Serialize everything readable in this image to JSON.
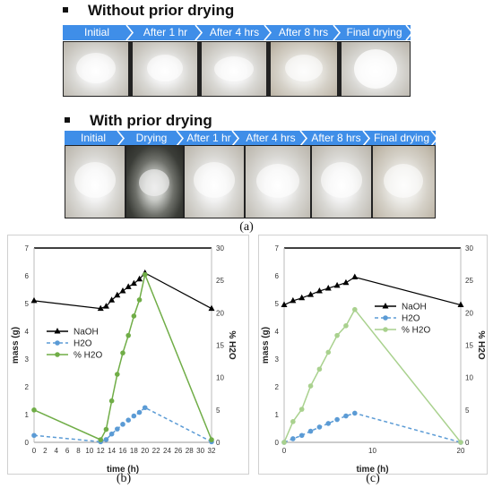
{
  "panel_a": {
    "top_title": "Without prior drying",
    "top_stages": [
      "Initial",
      "After 1 hr",
      "After 4 hrs",
      "After 8 hrs",
      "Final drying"
    ],
    "bottom_title": "With prior drying",
    "bottom_stages": [
      "Initial",
      "Drying",
      "After 1 hr",
      "After 4 hrs",
      "After 8 hrs",
      "Final drying"
    ],
    "banner_color": "#3f8ee8",
    "caption": "(a)"
  },
  "captions": {
    "b": "(b)",
    "c": "(c)"
  },
  "chart_data": [
    {
      "type": "line",
      "panel": "(b)",
      "xlabel": "time (h)",
      "ylabel_left": "mass (g)",
      "ylabel_right": "% H2O",
      "xlim": [
        0,
        32
      ],
      "xticks": [
        0,
        2,
        4,
        6,
        8,
        10,
        12,
        14,
        16,
        18,
        20,
        22,
        24,
        26,
        28,
        30,
        32
      ],
      "ylim_left": [
        0,
        7
      ],
      "yticks_left": [
        0,
        1,
        2,
        3,
        4,
        5,
        6,
        7
      ],
      "ylim_right": [
        0,
        30
      ],
      "yticks_right": [
        0,
        5,
        10,
        15,
        20,
        25,
        30
      ],
      "legend_position": "middle-left",
      "series": [
        {
          "name": "NaOH",
          "axis": "left",
          "color": "#000000",
          "marker": "triangle",
          "style": "solid",
          "x": [
            0,
            12,
            13,
            14,
            15,
            16,
            17,
            18,
            19,
            20,
            32
          ],
          "y": [
            5.1,
            4.82,
            4.9,
            5.12,
            5.3,
            5.45,
            5.6,
            5.72,
            5.88,
            6.1,
            4.82
          ]
        },
        {
          "name": "H2O",
          "axis": "left",
          "color": "#5b9bd5",
          "marker": "circle",
          "style": "dashed",
          "x": [
            0,
            12,
            13,
            14,
            15,
            16,
            17,
            18,
            19,
            20,
            32
          ],
          "y": [
            0.25,
            0.02,
            0.1,
            0.3,
            0.48,
            0.65,
            0.8,
            0.95,
            1.08,
            1.25,
            0.02
          ]
        },
        {
          "name": "% H2O",
          "axis": "right",
          "color": "#70ad47",
          "marker": "circle",
          "style": "solid",
          "x": [
            0,
            12,
            13,
            14,
            15,
            16,
            17,
            18,
            19,
            20,
            32
          ],
          "y": [
            5.0,
            0.4,
            2.0,
            6.4,
            10.5,
            13.8,
            16.5,
            19.5,
            22.0,
            25.9,
            0.4
          ]
        }
      ]
    },
    {
      "type": "line",
      "panel": "(c)",
      "xlabel": "time (h)",
      "ylabel_left": "mass (g)",
      "ylabel_right": "% H2O",
      "xlim": [
        0,
        20
      ],
      "xticks": [
        0,
        10,
        20
      ],
      "ylim_left": [
        0,
        7
      ],
      "yticks_left": [
        0,
        1,
        2,
        3,
        4,
        5,
        6,
        7
      ],
      "ylim_right": [
        0,
        30
      ],
      "yticks_right": [
        0,
        5,
        10,
        15,
        20,
        25,
        30
      ],
      "legend_position": "middle-right",
      "series": [
        {
          "name": "NaOH",
          "axis": "left",
          "color": "#000000",
          "marker": "triangle",
          "style": "solid",
          "x": [
            0,
            1,
            2,
            3,
            4,
            5,
            6,
            7,
            8,
            20
          ],
          "y": [
            4.95,
            5.1,
            5.2,
            5.32,
            5.45,
            5.55,
            5.65,
            5.75,
            5.95,
            4.95
          ]
        },
        {
          "name": "H2O",
          "axis": "left",
          "color": "#5b9bd5",
          "marker": "circle",
          "style": "dashed",
          "x": [
            0,
            1,
            2,
            3,
            4,
            5,
            6,
            7,
            8,
            20
          ],
          "y": [
            0.0,
            0.13,
            0.25,
            0.4,
            0.55,
            0.68,
            0.82,
            0.95,
            1.05,
            0.0
          ]
        },
        {
          "name": "% H2O",
          "axis": "right",
          "color": "#a9d18e",
          "marker": "circle",
          "style": "solid",
          "x": [
            0,
            1,
            2,
            3,
            4,
            5,
            6,
            7,
            8,
            20
          ],
          "y": [
            0.0,
            3.2,
            5.1,
            8.7,
            11.3,
            13.9,
            16.5,
            18.0,
            20.5,
            0.0
          ]
        }
      ]
    }
  ]
}
